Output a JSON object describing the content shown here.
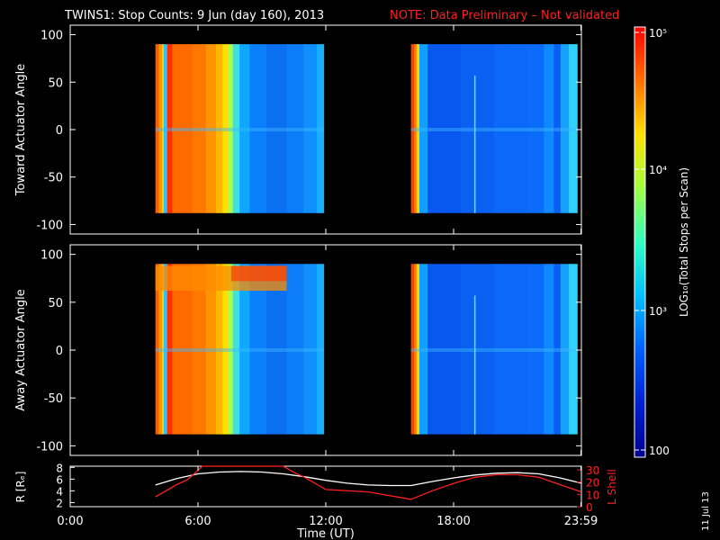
{
  "title": {
    "main": "TWINS1: Stop Counts:  9 Jun (day 160), 2013",
    "note": "NOTE: Data Preliminary – Not validated"
  },
  "date_stamp": "11 Jul 13",
  "chart_data": [
    {
      "type": "heatmap",
      "panel": "toward",
      "ylabel": "Toward Actuator Angle",
      "ylim": [
        -110,
        110
      ],
      "yticks": [
        100,
        50,
        0,
        -50,
        -100
      ],
      "x_range_hours": [
        0,
        24
      ],
      "data_blocks_hours": [
        [
          4.0,
          11.9
        ],
        [
          16.0,
          23.8
        ]
      ],
      "angle_range": [
        -88,
        90
      ]
    },
    {
      "type": "heatmap",
      "panel": "away",
      "ylabel": "Away Actuator Angle",
      "ylim": [
        -110,
        110
      ],
      "yticks": [
        100,
        50,
        0,
        -50,
        -100
      ],
      "x_range_hours": [
        0,
        24
      ],
      "data_blocks_hours": [
        [
          4.0,
          11.9
        ],
        [
          16.0,
          23.8
        ]
      ],
      "angle_range": [
        -88,
        90
      ]
    },
    {
      "type": "line",
      "panel": "orbit",
      "ylabel_left": "R [Rₑ]",
      "ylabel_right": "L Shell",
      "yticks_left": [
        "8",
        "6",
        "4",
        "2"
      ],
      "yticks_right": [
        "30",
        "20",
        "10",
        "0"
      ],
      "xlabel": "Time (UT)",
      "xticks": [
        "0:00",
        "6:00",
        "12:00",
        "18:00",
        "23:59"
      ],
      "series": [
        {
          "color": "#ffffff",
          "axis": "left",
          "x": [
            4.0,
            5.0,
            6.0,
            7.0,
            8.0,
            9.0,
            10.0,
            11.0,
            12.0,
            13.0,
            14.0,
            15.0,
            16.0,
            17.0,
            18.0,
            19.0,
            20.0,
            21.0,
            22.0,
            23.0,
            24.0
          ],
          "y": [
            5.0,
            6.1,
            6.9,
            7.2,
            7.3,
            7.2,
            6.9,
            6.4,
            5.8,
            5.3,
            5.0,
            4.9,
            4.9,
            5.6,
            6.2,
            6.7,
            7.0,
            7.1,
            6.9,
            6.2,
            5.3
          ]
        },
        {
          "color": "#ff2020",
          "axis": "right",
          "x": [
            4.0,
            5.0,
            5.5,
            5.9,
            6.2,
            10.0,
            10.5,
            11.0,
            12.0,
            14.0,
            16.0,
            17.0,
            18.0,
            19.0,
            20.0,
            21.0,
            22.0,
            23.0,
            24.0
          ],
          "y": [
            8,
            18,
            22,
            28,
            33,
            33,
            28,
            24,
            14,
            12,
            6,
            13,
            19,
            24,
            26,
            26,
            24,
            18,
            12
          ]
        }
      ]
    }
  ],
  "colorbar": {
    "label": "LOG₁₀(Total Stops per Scan)",
    "ticks": [
      "10⁵",
      "10⁴",
      "10³",
      "100"
    ],
    "colors": [
      "#ff0000",
      "#ff7000",
      "#ffe000",
      "#a0ff40",
      "#30ffc0",
      "#00c0ff",
      "#0060ff",
      "#0020d0",
      "#000090"
    ]
  }
}
